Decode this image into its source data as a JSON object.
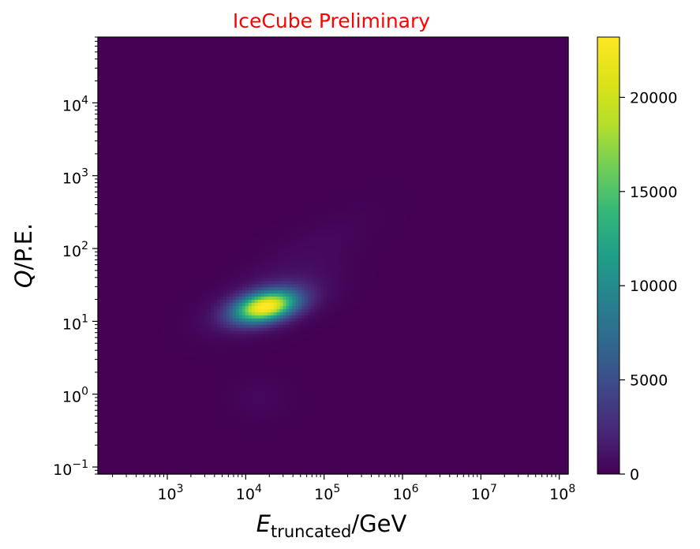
{
  "chart_data": {
    "type": "heatmap",
    "title": "IceCube Preliminary",
    "xlabel": {
      "main": "E",
      "sub": "truncated",
      "rest": "/GeV"
    },
    "ylabel": {
      "main": "Q",
      "rest": "/P.E."
    },
    "x_scale": "log",
    "y_scale": "log",
    "xlim": [
      130,
      130000000
    ],
    "ylim": [
      0.08,
      80000
    ],
    "x_ticks": [
      {
        "value": 1000,
        "base": "10",
        "exp": "3"
      },
      {
        "value": 10000,
        "base": "10",
        "exp": "4"
      },
      {
        "value": 100000,
        "base": "10",
        "exp": "5"
      },
      {
        "value": 1000000,
        "base": "10",
        "exp": "6"
      },
      {
        "value": 10000000,
        "base": "10",
        "exp": "7"
      },
      {
        "value": 100000000,
        "base": "10",
        "exp": "8"
      }
    ],
    "y_ticks": [
      {
        "value": 0.1,
        "base": "10",
        "exp": "−1"
      },
      {
        "value": 1,
        "base": "10",
        "exp": "0"
      },
      {
        "value": 10,
        "base": "10",
        "exp": "1"
      },
      {
        "value": 100,
        "base": "10",
        "exp": "2"
      },
      {
        "value": 1000,
        "base": "10",
        "exp": "3"
      },
      {
        "value": 10000,
        "base": "10",
        "exp": "4"
      }
    ],
    "colorbar": {
      "colormap": "viridis",
      "min": 0,
      "max": 23200,
      "ticks": [
        {
          "value": 0,
          "label": "0"
        },
        {
          "value": 5000,
          "label": "5000"
        },
        {
          "value": 10000,
          "label": "10000"
        },
        {
          "value": 15000,
          "label": "15000"
        },
        {
          "value": 20000,
          "label": "20000"
        }
      ]
    },
    "components": [
      {
        "x_center": 17800,
        "y_center": 16,
        "x_width_decades": 0.26,
        "y_width_decades": 0.14,
        "correlation": 0.35,
        "amplitude": 21500
      },
      {
        "x_center": 20000,
        "y_center": 18,
        "x_width_decades": 0.45,
        "y_width_decades": 0.25,
        "correlation": 0.5,
        "amplitude": 2600
      },
      {
        "x_center": 50000,
        "y_center": 70,
        "x_width_decades": 0.6,
        "y_width_decades": 0.45,
        "correlation": 0.75,
        "amplitude": 500
      },
      {
        "x_center": 15000,
        "y_center": 0.9,
        "x_width_decades": 0.3,
        "y_width_decades": 0.22,
        "correlation": 0.0,
        "amplitude": 380
      }
    ]
  }
}
